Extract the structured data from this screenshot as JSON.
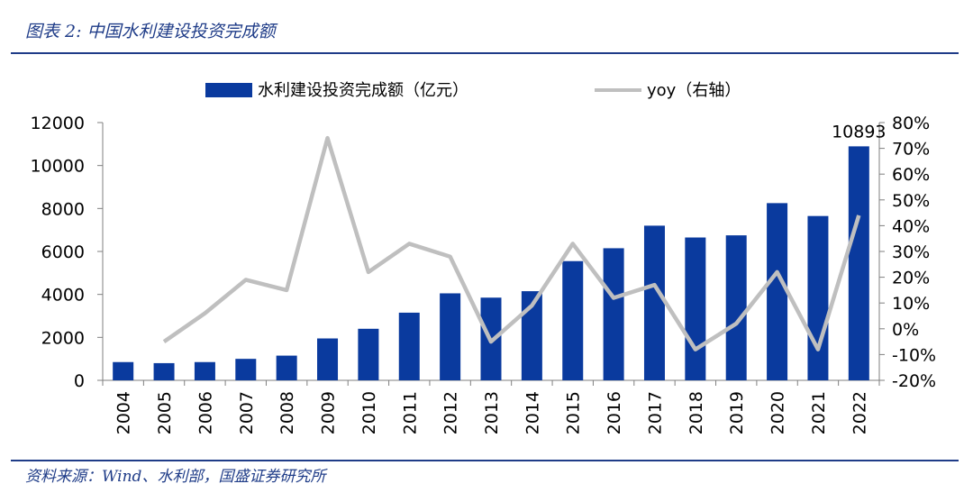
{
  "figure": {
    "title": "图表 2:  中国水利建设投资完成额",
    "source": "资料来源：Wind、水利部，国盛证券研究所"
  },
  "colors": {
    "bar": "#0a3a9e",
    "line": "#bfbfbf",
    "accent": "#1f3c88"
  },
  "chart_data": {
    "type": "bar",
    "categories": [
      "2004",
      "2005",
      "2006",
      "2007",
      "2008",
      "2009",
      "2010",
      "2011",
      "2012",
      "2013",
      "2014",
      "2015",
      "2016",
      "2017",
      "2018",
      "2019",
      "2020",
      "2021",
      "2022"
    ],
    "series": [
      {
        "name": "水利建设投资完成额（亿元）",
        "type": "bar",
        "axis": "left",
        "values": [
          850,
          800,
          850,
          1000,
          1150,
          1950,
          2400,
          3150,
          4050,
          3850,
          4150,
          5550,
          6150,
          7200,
          6650,
          6750,
          8250,
          7650,
          10893
        ]
      },
      {
        "name": "yoy（右轴）",
        "type": "line",
        "axis": "right",
        "values": [
          null,
          -5,
          6,
          19,
          15,
          74,
          22,
          33,
          28,
          -5,
          9,
          33,
          12,
          17,
          -8,
          2,
          22,
          -8,
          44
        ]
      }
    ],
    "data_labels": [
      {
        "category": "2022",
        "text": "10893"
      }
    ],
    "y_left": {
      "min": 0,
      "max": 12000,
      "ticks": [
        "0",
        "2000",
        "4000",
        "6000",
        "8000",
        "10000",
        "12000"
      ]
    },
    "y_right": {
      "min": -20,
      "max": 80,
      "ticks": [
        "-20%",
        "-10%",
        "0%",
        "10%",
        "20%",
        "30%",
        "40%",
        "50%",
        "60%",
        "70%",
        "80%"
      ]
    },
    "legend_position": "top",
    "grid": false
  }
}
